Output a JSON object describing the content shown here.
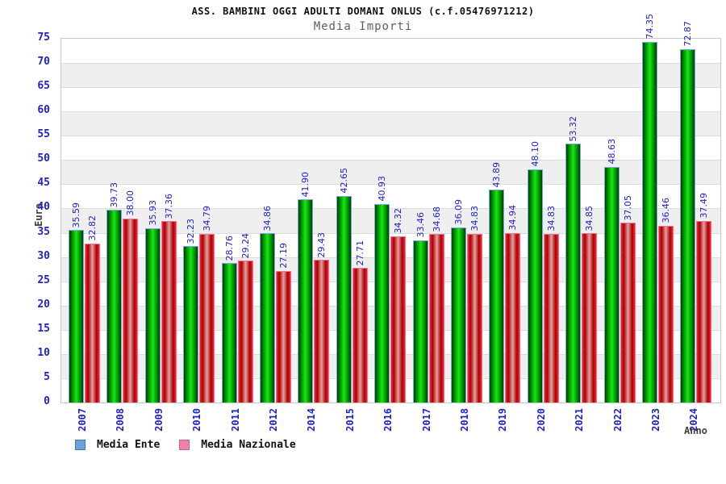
{
  "header": {
    "title": "ASS. BAMBINI OGGI ADULTI DOMANI ONLUS (c.f.05476971212)",
    "subtitle": "Media Importi"
  },
  "axes": {
    "y_label": "Euro",
    "x_label": "Anno",
    "y_ticks": [
      0,
      5,
      10,
      15,
      20,
      25,
      30,
      35,
      40,
      45,
      50,
      55,
      60,
      65,
      70,
      75
    ]
  },
  "legend": {
    "items": [
      {
        "label": "Media Ente",
        "swatch_fill": "#69a3d9",
        "swatch_border": "#3a78b5"
      },
      {
        "label": "Media Nazionale",
        "swatch_fill": "#ee7fae",
        "swatch_border": "#cc5f92"
      }
    ]
  },
  "chart_data": {
    "type": "bar",
    "title": "ASS. BAMBINI OGGI ADULTI DOMANI ONLUS (c.f.05476971212)",
    "subtitle": "Media Importi",
    "xlabel": "Anno",
    "ylabel": "Euro",
    "ylim": [
      0,
      75
    ],
    "ytick_step": 5,
    "grid": "horizontal",
    "background_bands": "alternating gray/white every 5 units",
    "legend_position": "bottom-left",
    "value_label_color": "#2222cc",
    "categories": [
      "2007",
      "2008",
      "2009",
      "2010",
      "2011",
      "2012",
      "2014",
      "2015",
      "2016",
      "2017",
      "2018",
      "2019",
      "2020",
      "2021",
      "2022",
      "2023",
      "2024"
    ],
    "series": [
      {
        "name": "Media Ente",
        "bar_color": "green",
        "outline_color": "#7ba6e9",
        "values": [
          35.59,
          39.73,
          35.93,
          32.23,
          28.76,
          34.86,
          41.9,
          42.65,
          40.93,
          33.46,
          36.09,
          43.89,
          48.1,
          53.32,
          48.63,
          74.35,
          72.87
        ],
        "value_labels": [
          "35.59",
          "39.73",
          "35.93",
          "32.23",
          "28.76",
          "34.86",
          "41.90",
          "42.65",
          "40.93",
          "33.46",
          "36.09",
          "43.89",
          "48.10",
          "53.32",
          "48.63",
          "74.35",
          "72.87"
        ]
      },
      {
        "name": "Media Nazionale",
        "bar_color": "red",
        "outline_color": "#f2718f",
        "values": [
          32.82,
          38.0,
          37.36,
          34.79,
          29.24,
          27.19,
          29.43,
          27.71,
          34.32,
          34.68,
          34.83,
          34.94,
          34.83,
          34.85,
          37.05,
          36.46,
          37.49
        ],
        "value_labels": [
          "32.82",
          "38.00",
          "37.36",
          "34.79",
          "29.24",
          "27.19",
          "29.43",
          "27.71",
          "34.32",
          "34.68",
          "34.83",
          "34.94",
          "34.83",
          "34.85",
          "37.05",
          "36.46",
          "37.49"
        ]
      }
    ]
  }
}
